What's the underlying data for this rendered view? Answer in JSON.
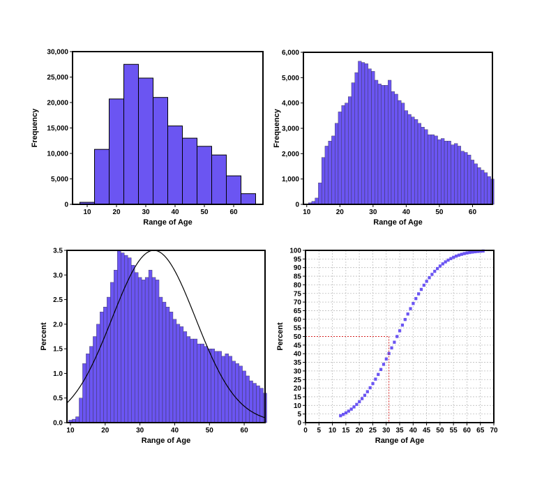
{
  "chart_data": [
    {
      "id": "c1",
      "type": "bar",
      "xlabel": "Range of Age",
      "ylabel": "Frequency",
      "xlim": [
        5,
        70
      ],
      "ylim": [
        0,
        30000
      ],
      "xticks": [
        "10",
        "20",
        "30",
        "40",
        "50",
        "60"
      ],
      "yticks": [
        "0",
        "5,000",
        "10,000",
        "15,000",
        "20,000",
        "25,000",
        "30,000"
      ],
      "bin_width": 5,
      "bins": [
        {
          "start": 7.5,
          "value": 400
        },
        {
          "start": 12.5,
          "value": 10800
        },
        {
          "start": 17.5,
          "value": 20700
        },
        {
          "start": 22.5,
          "value": 27500
        },
        {
          "start": 27.5,
          "value": 24800
        },
        {
          "start": 32.5,
          "value": 21000
        },
        {
          "start": 37.5,
          "value": 15400
        },
        {
          "start": 42.5,
          "value": 13000
        },
        {
          "start": 47.5,
          "value": 11400
        },
        {
          "start": 52.5,
          "value": 9700
        },
        {
          "start": 57.5,
          "value": 5600
        },
        {
          "start": 62.5,
          "value": 2100
        }
      ]
    },
    {
      "id": "c2",
      "type": "bar",
      "xlabel": "Range of Age",
      "ylabel": "Frequency",
      "xlim": [
        9,
        66
      ],
      "ylim": [
        0,
        6000
      ],
      "xticks": [
        "10",
        "20",
        "30",
        "40",
        "50",
        "60"
      ],
      "yticks": [
        "0",
        "1,000",
        "2,000",
        "3,000",
        "4,000",
        "5,000",
        "6,000"
      ],
      "x_start": 9.5,
      "bin_width": 1,
      "values": [
        20,
        60,
        120,
        250,
        850,
        1850,
        2300,
        2500,
        2700,
        3200,
        3650,
        3900,
        4000,
        4250,
        4800,
        5200,
        5650,
        5600,
        5550,
        5350,
        5250,
        4900,
        4750,
        4700,
        4700,
        4900,
        4450,
        4350,
        4100,
        4000,
        3700,
        3550,
        3450,
        3350,
        3200,
        3050,
        2950,
        2750,
        2750,
        2700,
        2550,
        2600,
        2500,
        2500,
        2350,
        2400,
        2300,
        2100,
        2050,
        1950,
        1750,
        1600,
        1450,
        1350,
        1250,
        1100,
        1000
      ]
    },
    {
      "id": "c3",
      "type": "bar",
      "xlabel": "Range of Age",
      "ylabel": "Percent",
      "xlim": [
        9,
        66
      ],
      "ylim": [
        0,
        3.5
      ],
      "xticks": [
        "10",
        "20",
        "30",
        "40",
        "50",
        "60"
      ],
      "yticks": [
        "0.0",
        "0.5",
        "1.0",
        "1.5",
        "2.0",
        "2.5",
        "3.0",
        "3.5"
      ],
      "x_start": 9.5,
      "bin_width": 1,
      "values": [
        0.05,
        0.07,
        0.12,
        0.5,
        1.2,
        1.4,
        1.55,
        1.75,
        2.0,
        2.25,
        2.35,
        2.55,
        2.85,
        3.1,
        3.5,
        3.45,
        3.4,
        3.35,
        3.2,
        3.05,
        2.95,
        2.9,
        2.95,
        3.1,
        2.95,
        2.9,
        2.55,
        2.45,
        2.35,
        2.25,
        2.1,
        2.0,
        1.95,
        1.85,
        1.75,
        1.7,
        1.7,
        1.6,
        1.6,
        1.55,
        1.5,
        1.5,
        1.45,
        1.45,
        1.35,
        1.4,
        1.35,
        1.25,
        1.2,
        1.15,
        1.05,
        0.95,
        0.85,
        0.8,
        0.75,
        0.7,
        0.6
      ],
      "normal_curve": {
        "mean": 34,
        "sd": 12,
        "peak": 3.5
      }
    },
    {
      "id": "c4",
      "type": "line",
      "xlabel": "Range of Age",
      "ylabel": "Percent",
      "xlim": [
        0,
        70
      ],
      "ylim": [
        0,
        100
      ],
      "grid": true,
      "xticks": [
        "0",
        "5",
        "10",
        "15",
        "20",
        "25",
        "30",
        "35",
        "40",
        "45",
        "50",
        "55",
        "60",
        "65",
        "70"
      ],
      "yticks": [
        "0",
        "5",
        "10",
        "15",
        "20",
        "25",
        "30",
        "35",
        "40",
        "45",
        "50",
        "55",
        "60",
        "65",
        "70",
        "75",
        "80",
        "85",
        "90",
        "95",
        "100"
      ],
      "cumulative": {
        "mean": 34,
        "sd": 12,
        "x_from": 13,
        "x_to": 66
      },
      "median_marker": {
        "x": 31,
        "y": 50
      }
    }
  ]
}
